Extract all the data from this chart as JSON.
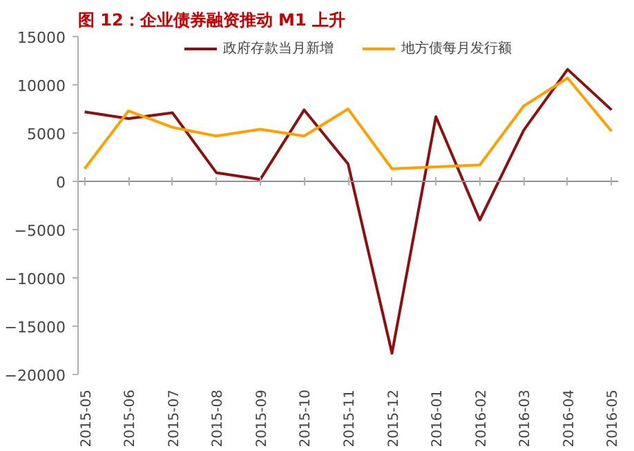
{
  "chart_data": {
    "type": "line",
    "title": "图 12：企业债券融资推动 M1 上升",
    "categories": [
      "2015-05",
      "2015-06",
      "2015-07",
      "2015-08",
      "2015-09",
      "2015-10",
      "2015-11",
      "2015-12",
      "2016-01",
      "2016-02",
      "2016-03",
      "2016-04",
      "2016-05"
    ],
    "series": [
      {
        "name": "政府存款当月新增",
        "color": "#8b1111",
        "values": [
          7200,
          6500,
          7100,
          900,
          200,
          7400,
          1800,
          -17800,
          6700,
          -4000,
          5300,
          11600,
          7400
        ]
      },
      {
        "name": "地方债每月发行额",
        "color": "#ffa000",
        "values": [
          1300,
          7300,
          5600,
          4700,
          5400,
          4700,
          7500,
          1300,
          1500,
          1700,
          7800,
          10700,
          5200
        ]
      }
    ],
    "ylim": [
      -20000,
      15000
    ],
    "yticks": [
      -20000,
      -15000,
      -10000,
      -5000,
      0,
      5000,
      10000,
      15000
    ],
    "legend": "top",
    "marker": "none",
    "line_style": "solid"
  }
}
